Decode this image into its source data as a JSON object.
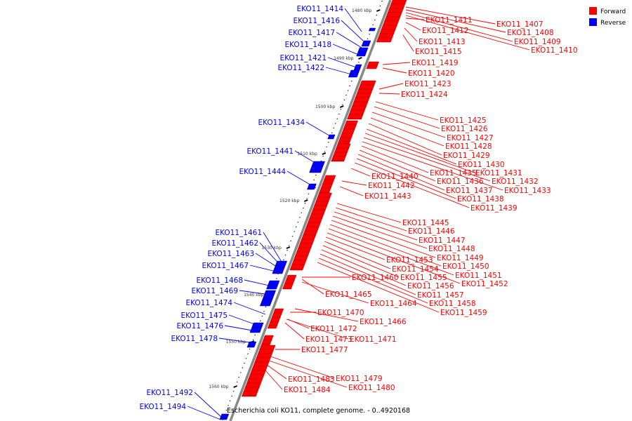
{
  "legend": {
    "forward_label": "Forward",
    "reverse_label": "Reverse",
    "forward_color": "#ff0000",
    "reverse_color": "#0000ff"
  },
  "caption": "Escherichia coli KO11, complete genome. - 0..4920168",
  "ticks": [
    "1480 kbp",
    "1490 kbp",
    "1500 kbp",
    "1510 kbp",
    "1520 kbp",
    "1530 kbp",
    "1540 kbp",
    "1550 kbp",
    "1560 kbp"
  ],
  "reverse_genes": [
    "EKO11_1414",
    "EKO11_1416",
    "EKO11_1417",
    "EKO11_1418",
    "EKO11_1421",
    "EKO11_1422",
    "EKO11_1434",
    "EKO11_1441",
    "EKO11_1444",
    "EKO11_1461",
    "EKO11_1462",
    "EKO11_1463",
    "EKO11_1467",
    "EKO11_1468",
    "EKO11_1469",
    "EKO11_1474",
    "EKO11_1475",
    "EKO11_1476",
    "EKO11_1478",
    "EKO11_1492",
    "EKO11_1494"
  ],
  "forward_genes": [
    "EKO11_1407",
    "EKO11_1408",
    "EKO11_1409",
    "EKO11_1410",
    "EKO11_1411",
    "EKO11_1412",
    "EKO11_1413",
    "EKO11_1415",
    "EKO11_1419",
    "EKO11_1420",
    "EKO11_1423",
    "EKO11_1424",
    "EKO11_1425",
    "EKO11_1426",
    "EKO11_1427",
    "EKO11_1428",
    "EKO11_1429",
    "EKO11_1430",
    "EKO11_1431",
    "EKO11_1432",
    "EKO11_1433",
    "EKO11_1435",
    "EKO11_1436",
    "EKO11_1437",
    "EKO11_1438",
    "EKO11_1439",
    "EKO11_1440",
    "EKO11_1442",
    "EKO11_1443",
    "EKO11_1445",
    "EKO11_1446",
    "EKO11_1447",
    "EKO11_1448",
    "EKO11_1449",
    "EKO11_1450",
    "EKO11_1451",
    "EKO11_1452",
    "EKO11_1453",
    "EKO11_1454",
    "EKO11_1455",
    "EKO11_1456",
    "EKO11_1457",
    "EKO11_1458",
    "EKO11_1459",
    "EKO11_1460",
    "EKO11_1464",
    "EKO11_1465",
    "EKO11_1466",
    "EKO11_1470",
    "EKO11_1471",
    "EKO11_1472",
    "EKO11_1473",
    "EKO11_1477",
    "EKO11_1479",
    "EKO11_1480",
    "EKO11_1483",
    "EKO11_1484"
  ]
}
